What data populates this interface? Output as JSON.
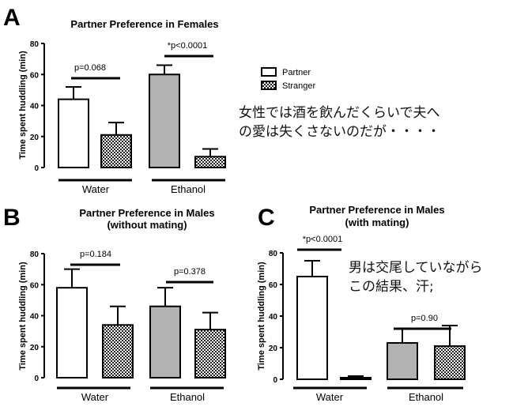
{
  "legend": {
    "partner_label": "Partner",
    "stranger_label": "Stranger"
  },
  "annotations": {
    "note_a_line1": "女性では酒を飲んだくらいで夫へ",
    "note_a_line2": "の愛は失くさないのだが・・・・",
    "note_c_line1": "男は交尾していながら",
    "note_c_line2": "この結果、汗;"
  },
  "colors": {
    "partner_fill": "#ffffff",
    "ethanol_partner_fill": "#b2b2b2",
    "stranger_pattern": "#222222",
    "ink": "#000000"
  },
  "chart_data": [
    {
      "panel": "A",
      "type": "bar",
      "title": "Partner Preference in Females",
      "subtitle": "",
      "ylabel": "Time spent huddling (min)",
      "ylim": [
        0,
        80
      ],
      "yticks": [
        0,
        20,
        40,
        60,
        80
      ],
      "groups": [
        "Water",
        "Ethanol"
      ],
      "series": [
        {
          "name": "Partner",
          "values": [
            44,
            60
          ],
          "errors": [
            8,
            6
          ]
        },
        {
          "name": "Stranger",
          "values": [
            21,
            7
          ],
          "errors": [
            8,
            5
          ]
        }
      ],
      "significance": [
        "p=0.068",
        "*p<0.0001"
      ]
    },
    {
      "panel": "B",
      "type": "bar",
      "title": "Partner Preference in Males",
      "subtitle": "(without mating)",
      "ylabel": "Time spent huddling (min)",
      "ylim": [
        0,
        80
      ],
      "yticks": [
        0,
        20,
        40,
        60,
        80
      ],
      "groups": [
        "Water",
        "Ethanol"
      ],
      "series": [
        {
          "name": "Partner",
          "values": [
            58,
            46
          ],
          "errors": [
            12,
            12
          ]
        },
        {
          "name": "Stranger",
          "values": [
            34,
            31
          ],
          "errors": [
            12,
            11
          ]
        }
      ],
      "significance": [
        "p=0.184",
        "p=0.378"
      ]
    },
    {
      "panel": "C",
      "type": "bar",
      "title": "Partner Preference in Males",
      "subtitle": "(with mating)",
      "ylabel": "Time spent huddling (min)",
      "ylim": [
        0,
        80
      ],
      "yticks": [
        0,
        20,
        40,
        60,
        80
      ],
      "groups": [
        "Water",
        "Ethanol"
      ],
      "series": [
        {
          "name": "Partner",
          "values": [
            65,
            23
          ],
          "errors": [
            10,
            9
          ]
        },
        {
          "name": "Stranger",
          "values": [
            1,
            21
          ],
          "errors": [
            1,
            13
          ]
        }
      ],
      "significance": [
        "*p<0.0001",
        "p=0.90"
      ]
    }
  ]
}
